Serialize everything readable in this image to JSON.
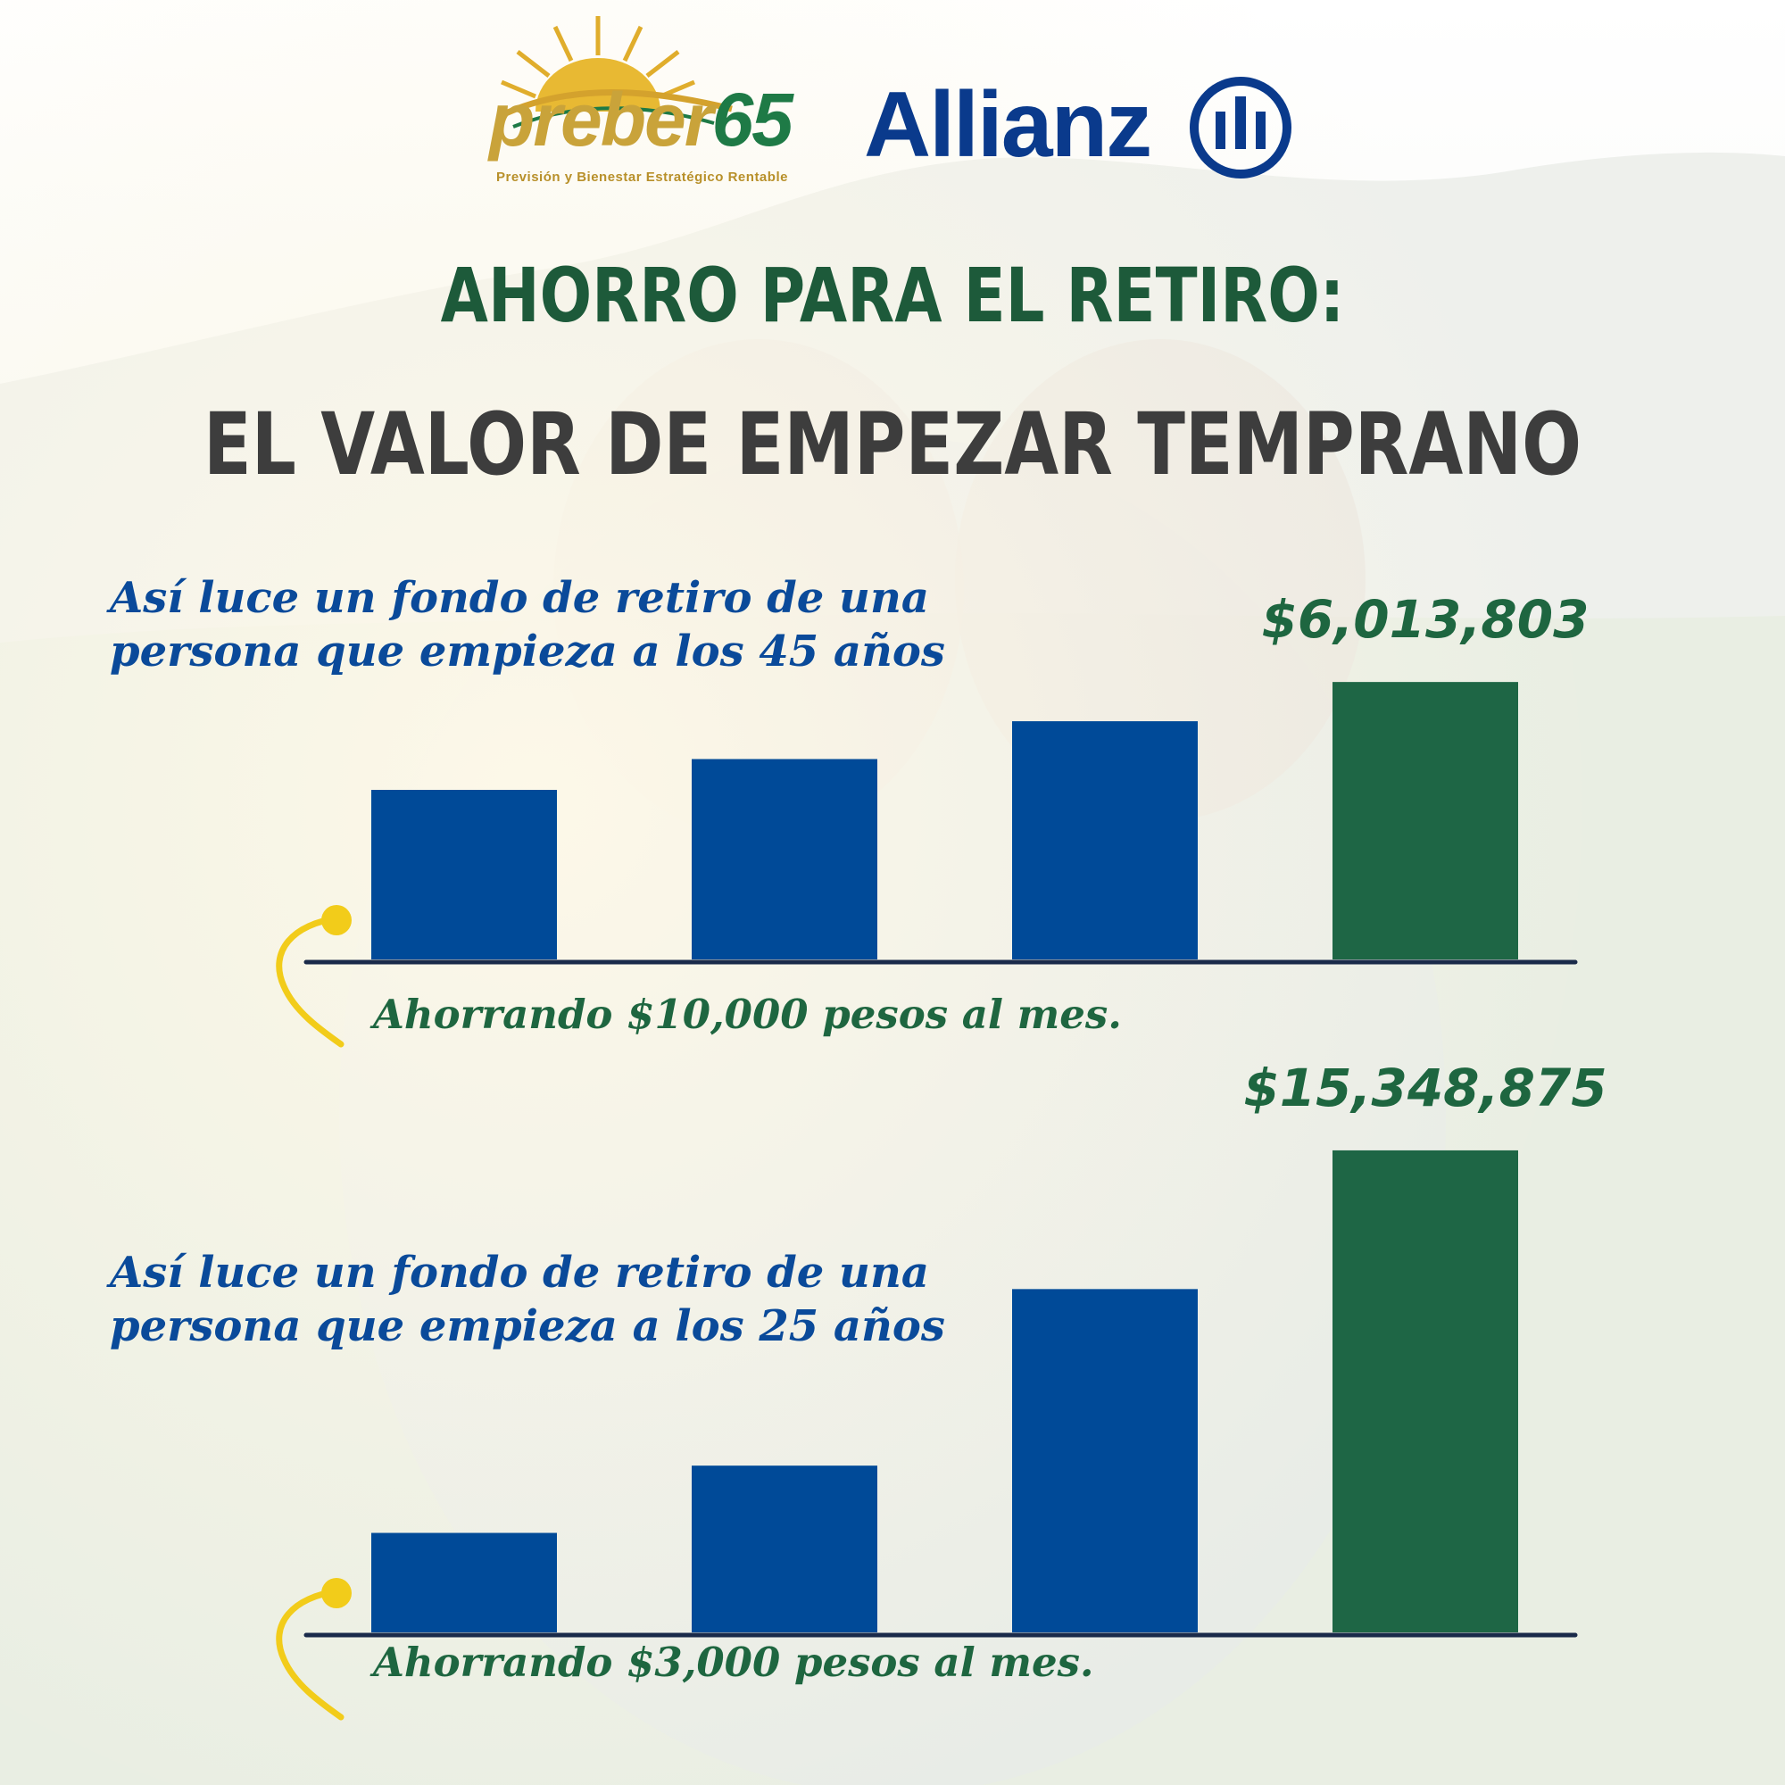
{
  "logos": {
    "preber": {
      "name_part1": "preber",
      "name_part2": "65",
      "tagline": "Previsión y Bienestar Estratégico Rentable"
    },
    "allianz": {
      "name": "Allianz"
    }
  },
  "title": {
    "line1": "AHORRO PARA EL RETIRO:",
    "line2": "EL VALOR DE EMPEZAR TEMPRANO"
  },
  "colors": {
    "bar_blue": "#004a98",
    "bar_green": "#1e6645",
    "caption_blue": "#0a4a9a",
    "text_green": "#1e6640",
    "accent_yellow": "#f2cc1a",
    "axis": "#1a2a4a"
  },
  "chart_data": [
    {
      "type": "bar",
      "caption_line1": "Así luce un fondo de retiro de una",
      "caption_line2": "persona que empieza a los 45 años",
      "saving": "Ahorrando $10,000 pesos al mes.",
      "values": [
        1.21,
        1.43,
        1.7,
        1.98
      ],
      "highlight_index": 3,
      "highlight_label": "$6,013,803",
      "value_unit": "inches",
      "grid": false
    },
    {
      "type": "bar",
      "caption_line1": "Así luce un fondo de retiro de una",
      "caption_line2": "persona que empieza a los 25 años",
      "saving": "Ahorrando $3,000 pesos al mes.",
      "values": [
        0.71,
        1.19,
        2.45,
        3.44
      ],
      "highlight_index": 3,
      "highlight_label": "$15,348,875",
      "value_unit": "inches",
      "grid": false
    }
  ]
}
